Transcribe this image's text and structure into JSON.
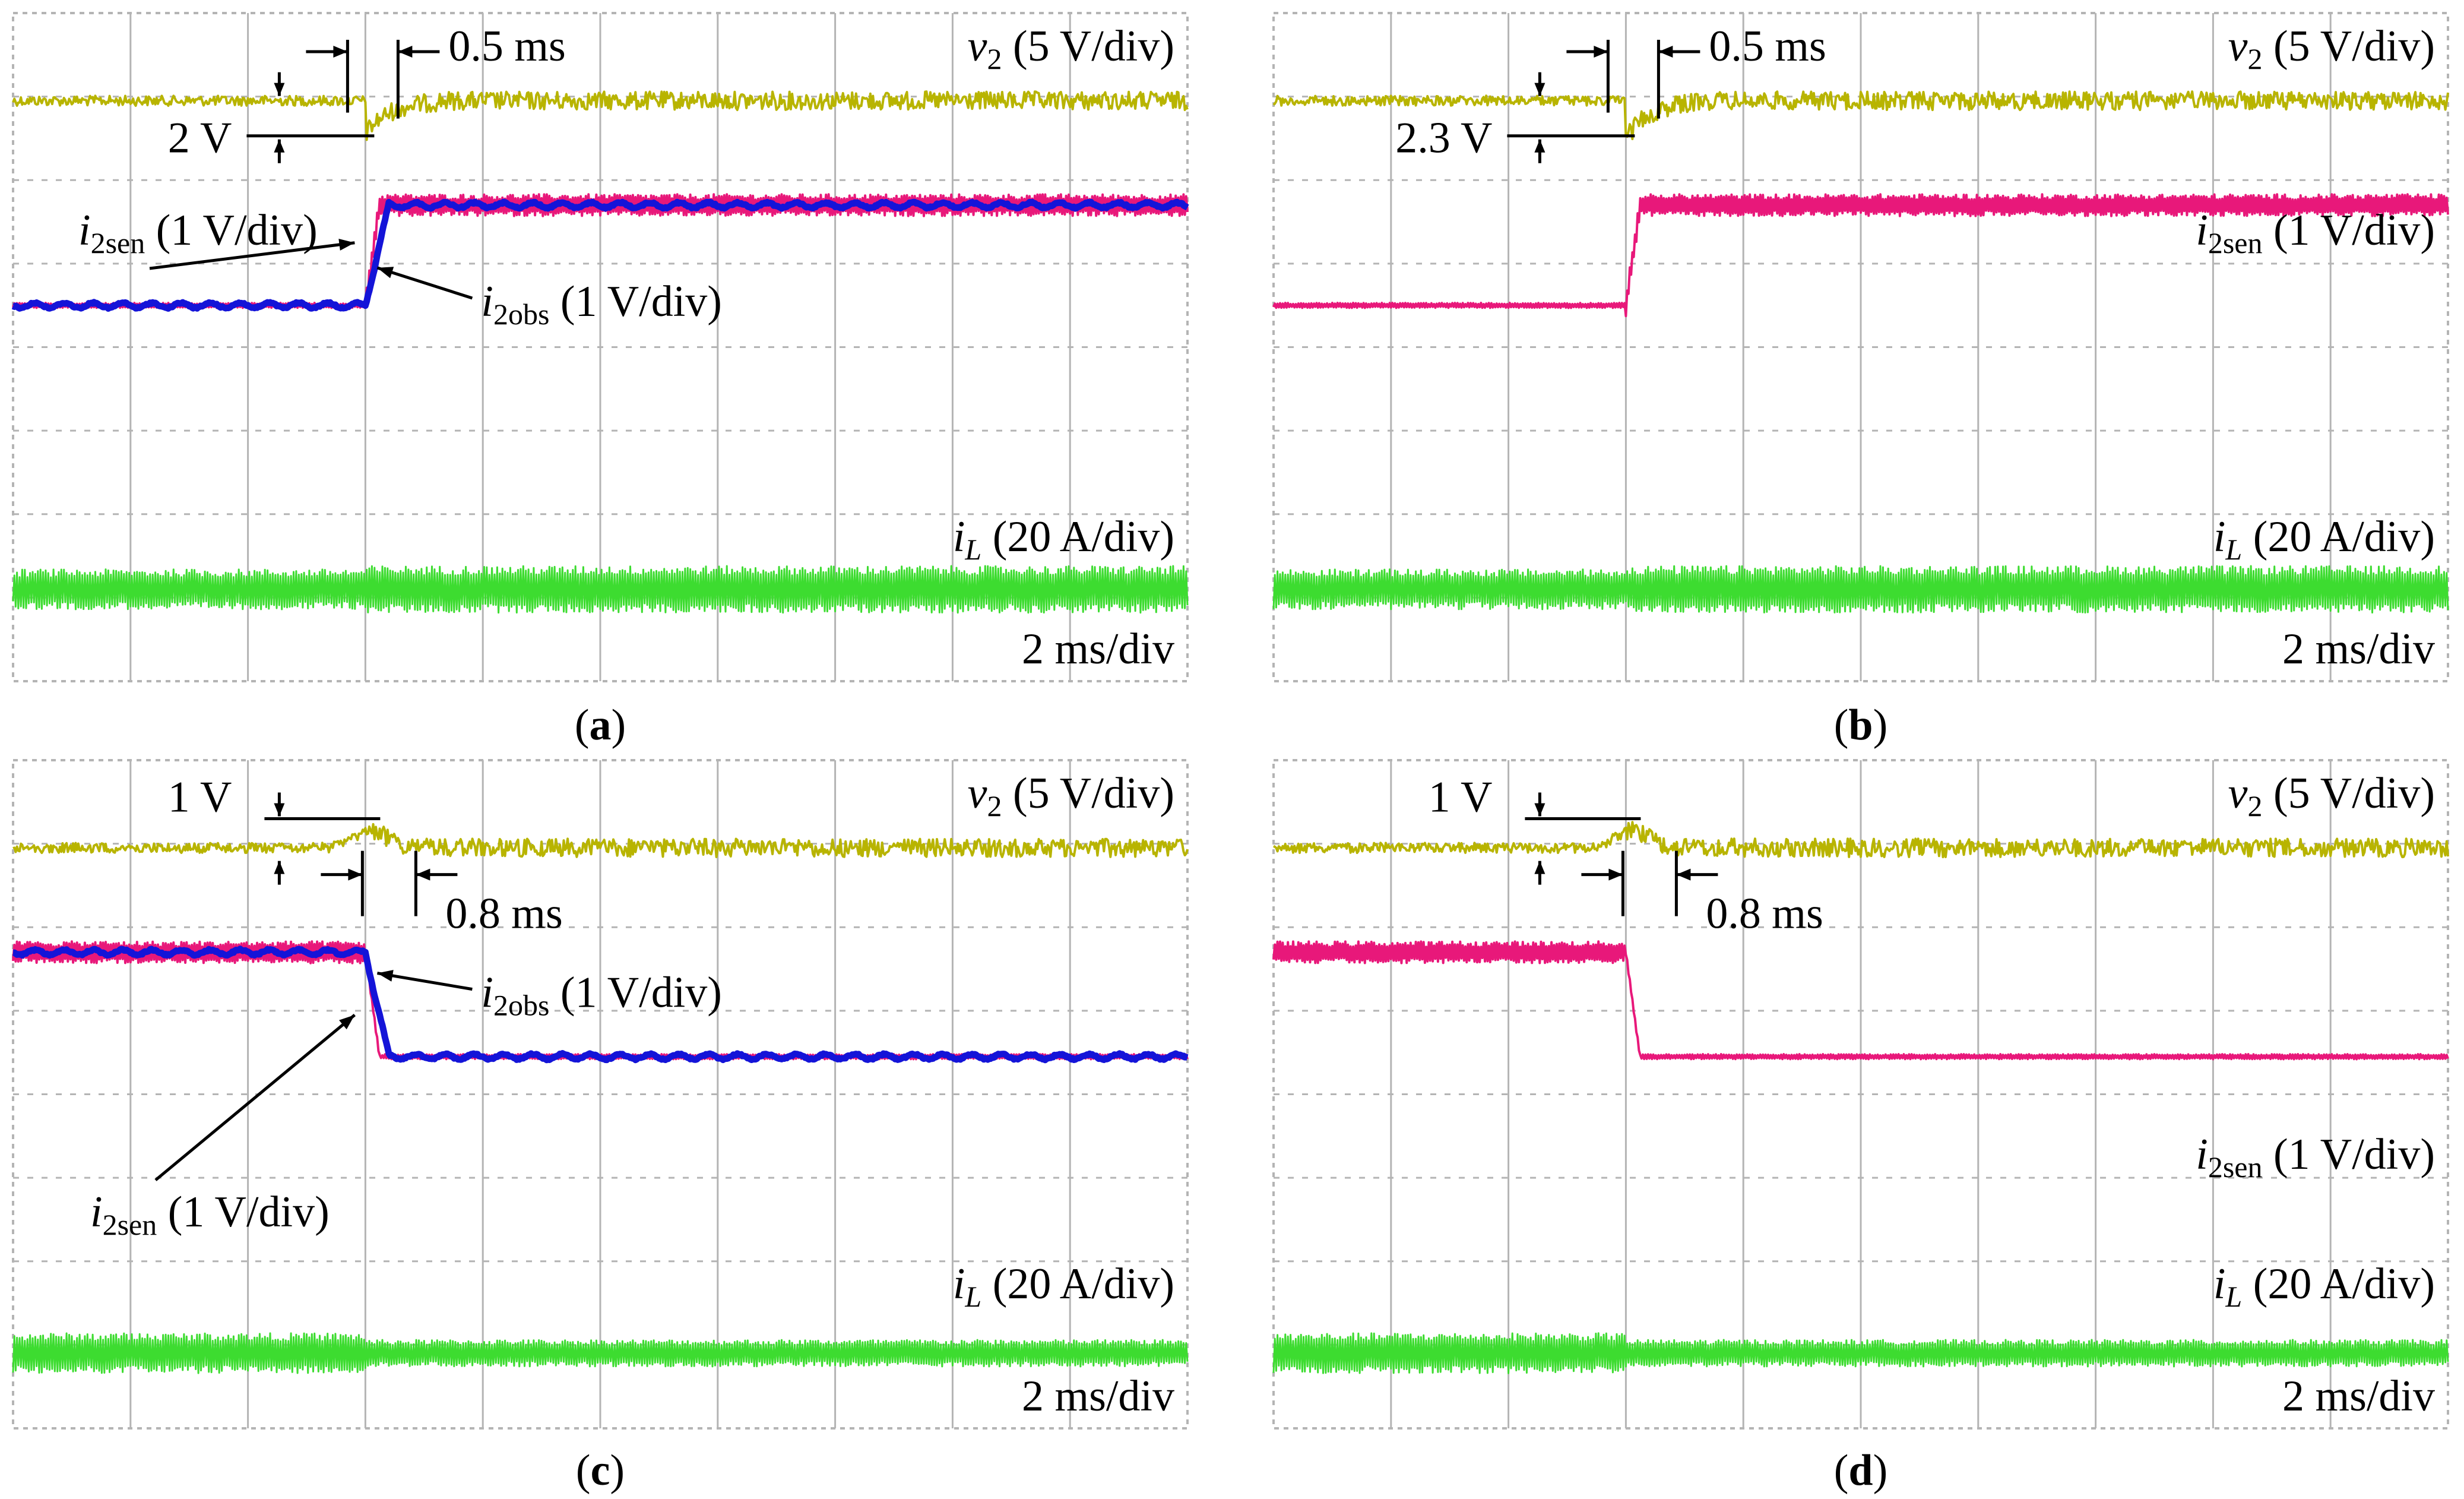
{
  "colors": {
    "v2": "#b8b400",
    "i2sen": "#e8187a",
    "i2obs": "#1414d8",
    "iL": "#3ddc30",
    "grid": "#b4b4b4",
    "annotation": "#000000"
  },
  "chart_data": [
    {
      "id": "a",
      "type": "line",
      "caption": "(a)",
      "time_scale": "2 ms/div",
      "x_divisions": 10,
      "y_divisions": 8,
      "step_time_div": 3.0,
      "series": [
        {
          "key": "v2",
          "name": "v2 (5 V/div)",
          "sub": "2",
          "rest": " (5 V/div)",
          "before_div": 1.05,
          "after_div": 1.05,
          "dip_div": 0.4
        },
        {
          "key": "i2sen",
          "name": "i2sen (1 V/div)",
          "sub": "2sen",
          "rest": " (1 V/div)",
          "before_div": 3.5,
          "after_div": 2.3
        },
        {
          "key": "i2obs",
          "name": "i2obs (1 V/div)",
          "sub": "2obs",
          "rest": " (1 V/div)",
          "before_div": 3.5,
          "after_div": 2.3
        },
        {
          "key": "iL",
          "name": "iL (20 A/div)",
          "sub": "L",
          "rest": " (20 A/div)",
          "before_div": 6.9,
          "after_div": 6.9
        }
      ],
      "annotations": {
        "dv": "2 V",
        "dt": "0.5 ms",
        "i2sen_sub": "2sen",
        "i2sen_rest": " (1 V/div)",
        "i2obs_sub": "2obs",
        "i2obs_rest": " (1 V/div)"
      }
    },
    {
      "id": "b",
      "type": "line",
      "caption": "(b)",
      "time_scale": "2 ms/div",
      "x_divisions": 10,
      "y_divisions": 8,
      "step_time_div": 3.0,
      "series": [
        {
          "key": "v2",
          "name": "v2 (5 V/div)",
          "sub": "2",
          "rest": " (5 V/div)",
          "before_div": 1.05,
          "after_div": 1.05,
          "dip_div": 0.46
        },
        {
          "key": "i2sen",
          "name": "i2sen (1 V/div)",
          "sub": "2sen",
          "rest": " (1 V/div)",
          "before_div": 3.5,
          "after_div": 2.3
        },
        {
          "key": "iL",
          "name": "iL (20 A/div)",
          "sub": "L",
          "rest": " (20 A/div)",
          "before_div": 6.9,
          "after_div": 6.9
        }
      ],
      "annotations": {
        "dv": "2.3 V",
        "dt": "0.5 ms"
      }
    },
    {
      "id": "c",
      "type": "line",
      "caption": "(c)",
      "time_scale": "2 ms/div",
      "x_divisions": 10,
      "y_divisions": 8,
      "step_time_div": 3.0,
      "series": [
        {
          "key": "v2",
          "name": "v2 (5 V/div)",
          "sub": "2",
          "rest": " (5 V/div)",
          "before_div": 1.05,
          "after_div": 1.05,
          "bump_div": 0.2
        },
        {
          "key": "i2sen",
          "name": "i2sen (1 V/div)",
          "sub": "2sen",
          "rest": " (1 V/div)",
          "before_div": 2.3,
          "after_div": 3.55
        },
        {
          "key": "i2obs",
          "name": "i2obs (1 V/div)",
          "sub": "2obs",
          "rest": " (1 V/div)",
          "before_div": 2.3,
          "after_div": 3.55
        },
        {
          "key": "iL",
          "name": "iL (20 A/div)",
          "sub": "L",
          "rest": " (20 A/div)",
          "before_div": 7.1,
          "after_div": 7.1
        }
      ],
      "annotations": {
        "dv": "1 V",
        "dt": "0.8 ms",
        "i2sen_sub": "2sen",
        "i2sen_rest": " (1 V/div)",
        "i2obs_sub": "2obs",
        "i2obs_rest": " (1 V/div)"
      }
    },
    {
      "id": "d",
      "type": "line",
      "caption": "(d)",
      "time_scale": "2 ms/div",
      "x_divisions": 10,
      "y_divisions": 8,
      "step_time_div": 3.0,
      "series": [
        {
          "key": "v2",
          "name": "v2 (5 V/div)",
          "sub": "2",
          "rest": " (5 V/div)",
          "before_div": 1.05,
          "after_div": 1.05,
          "bump_div": 0.2
        },
        {
          "key": "i2sen",
          "name": "i2sen (1 V/div)",
          "sub": "2sen",
          "rest": " (1 V/div)",
          "before_div": 2.3,
          "after_div": 3.55
        },
        {
          "key": "iL",
          "name": "iL (20 A/div)",
          "sub": "L",
          "rest": " (20 A/div)",
          "before_div": 7.1,
          "after_div": 7.1
        }
      ],
      "annotations": {
        "dv": "1 V",
        "dt": "0.8 ms"
      }
    }
  ]
}
